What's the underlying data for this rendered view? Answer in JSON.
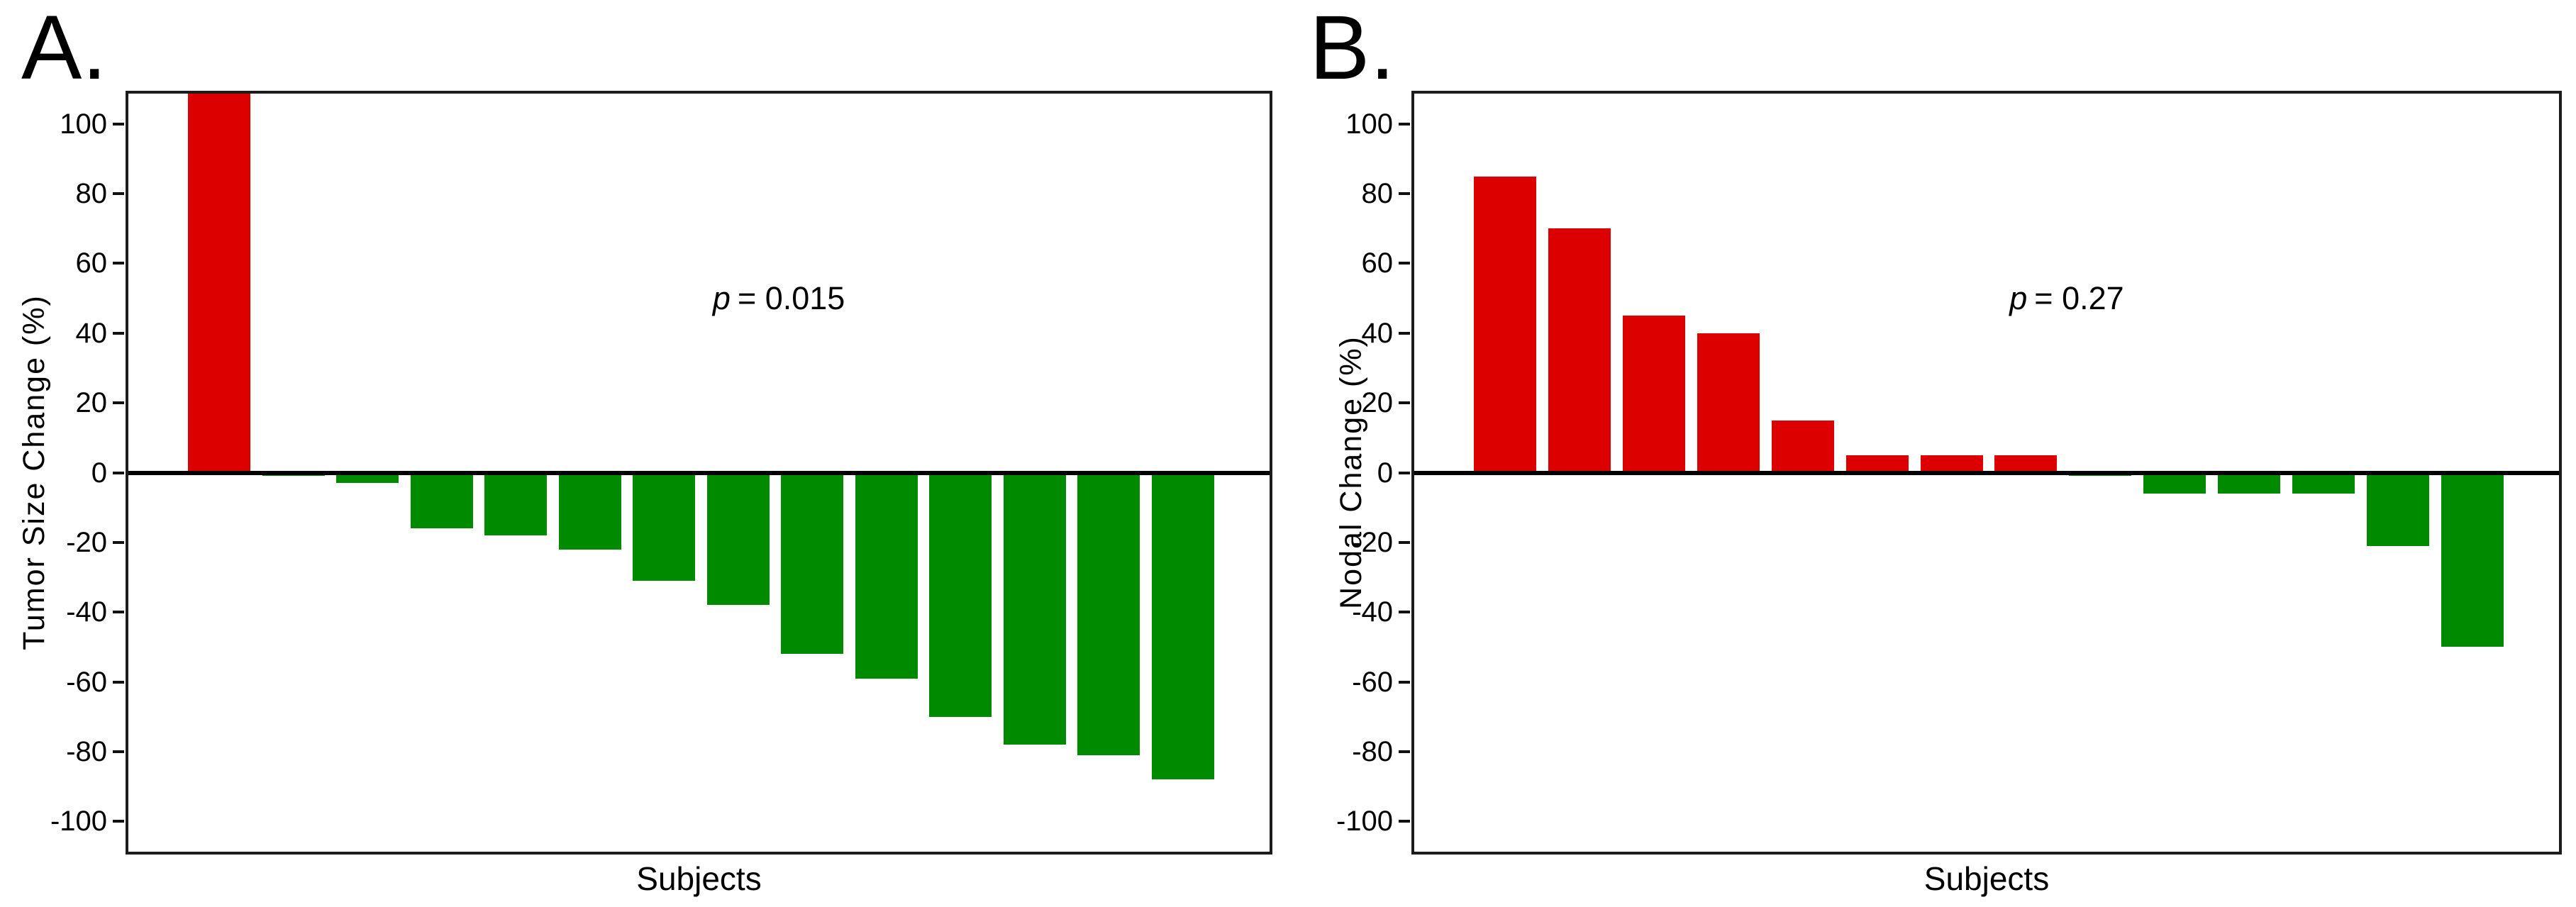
{
  "figure": {
    "background": "#ffffff",
    "axis_color": "#1c1c1c",
    "zero_line_color": "#000000"
  },
  "chart_data": [
    {
      "type": "bar",
      "panel_label": "A.",
      "title": "",
      "ylabel": "Tumor Size Change (%)",
      "xlabel": "Subjects",
      "annotation": {
        "symbol": "p",
        "text": "= 0.015",
        "full": "p = 0.015"
      },
      "ylim": [
        -108.7,
        108.7
      ],
      "yticks": [
        100,
        80,
        60,
        40,
        20,
        0,
        -20,
        -40,
        -60,
        -80,
        -100
      ],
      "x_tick_labels_shown": false,
      "grid": false,
      "legend": null,
      "categories": [
        "",
        "",
        "",
        "",
        "",
        "",
        "",
        "",
        "",
        "",
        "",
        "",
        "",
        ""
      ],
      "values": [
        108,
        -1,
        -3,
        -16,
        -18,
        -22,
        -31,
        -38,
        -52,
        -59,
        -70,
        -78,
        -81,
        -88
      ],
      "clipped_at_top_index": 0,
      "clipped_note": "first bar exceeds axis maximum and is clipped at the top frame",
      "positive_color": "#DD0000",
      "negative_color": "#008A00"
    },
    {
      "type": "bar",
      "panel_label": "B.",
      "title": "",
      "ylabel": "Nodal Change (%)",
      "xlabel": "Subjects",
      "annotation": {
        "symbol": "p",
        "text": "= 0.27",
        "full": "p = 0.27"
      },
      "ylim": [
        -108.7,
        108.7
      ],
      "yticks": [
        100,
        80,
        60,
        40,
        20,
        0,
        -20,
        -40,
        -60,
        -80,
        -100
      ],
      "x_tick_labels_shown": false,
      "grid": false,
      "legend": null,
      "categories": [
        "",
        "",
        "",
        "",
        "",
        "",
        "",
        "",
        "",
        "",
        "",
        "",
        "",
        ""
      ],
      "values": [
        85,
        70,
        45,
        40,
        15,
        5,
        5,
        5,
        -1,
        -6,
        -6,
        -6,
        -21,
        -50
      ],
      "clipped_at_top_index": -1,
      "positive_color": "#DD0000",
      "negative_color": "#008A00"
    }
  ]
}
